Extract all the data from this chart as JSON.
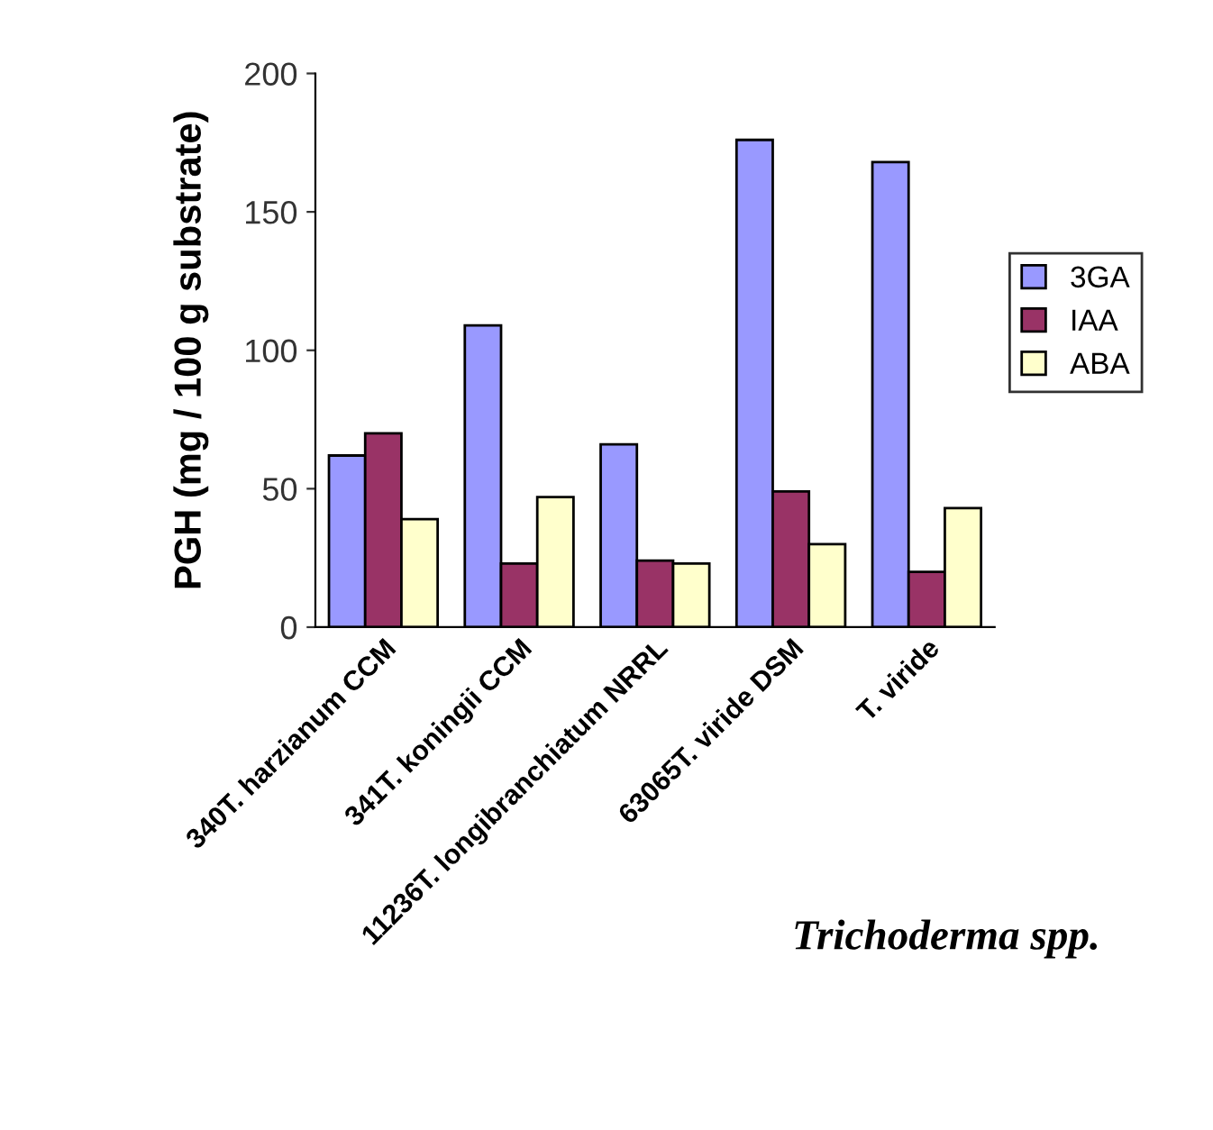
{
  "chart_data": {
    "type": "bar",
    "xlabel": "Trichoderma spp.",
    "ylabel": "PGH (mg / 100 g substrate)",
    "categories": [
      "340T. harzianum CCM",
      "341T. koningii CCM",
      "11236T. longibranchiatum NRRL",
      "63065T. viride DSM",
      "T. viride"
    ],
    "series": [
      {
        "name": "3GA",
        "color": "#9999ff",
        "values": [
          62,
          109,
          66,
          176,
          168
        ]
      },
      {
        "name": "IAA",
        "color": "#993366",
        "values": [
          70,
          23,
          24,
          49,
          20
        ]
      },
      {
        "name": "ABA",
        "color": "#ffffcc",
        "values": [
          39,
          47,
          23,
          30,
          43
        ]
      }
    ],
    "ylim": [
      0,
      200
    ],
    "yticks": [
      0,
      50,
      100,
      150,
      200
    ],
    "grid": false,
    "legend": "right"
  }
}
